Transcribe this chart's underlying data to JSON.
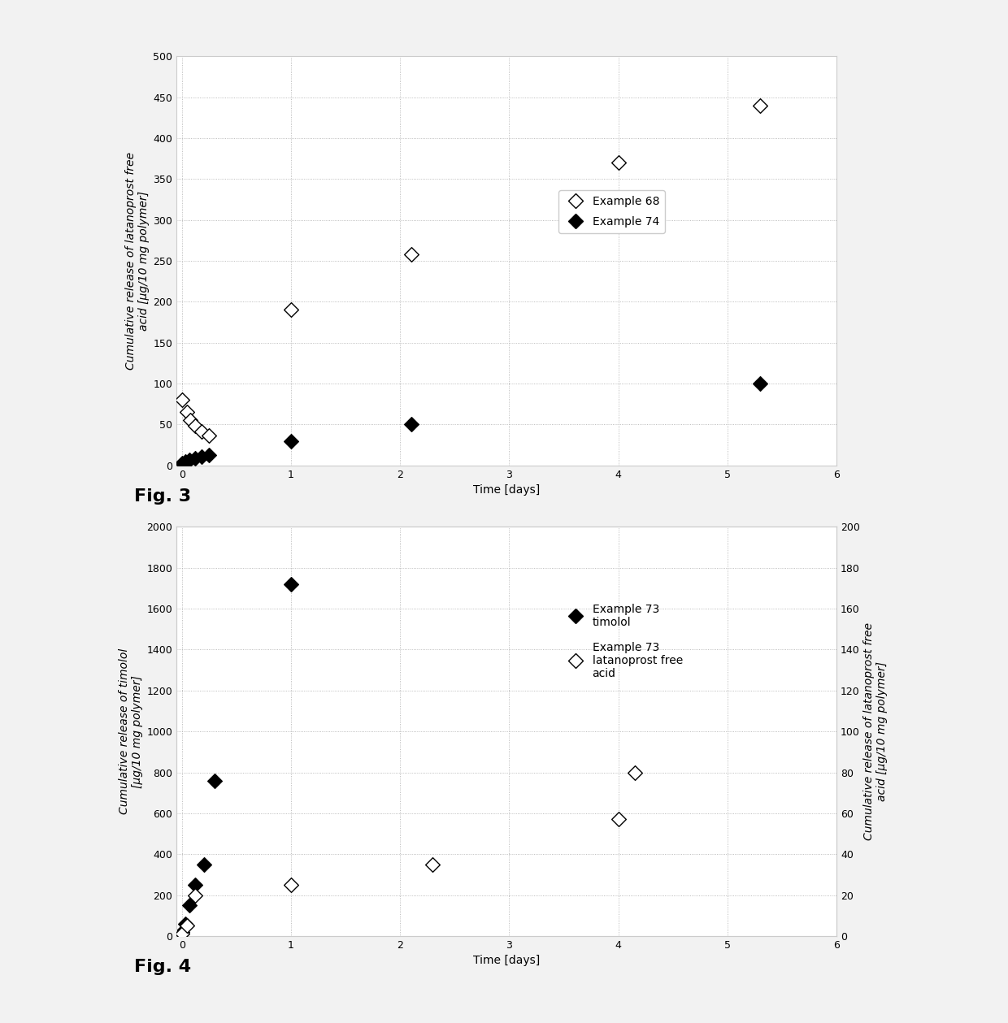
{
  "fig3": {
    "xlabel": "Time [days]",
    "ylabel": "Cumulative release of latanoprost free\nacid [µg/10 mg polymer]",
    "xlim": [
      -0.05,
      6
    ],
    "ylim": [
      0,
      500
    ],
    "yticks": [
      0,
      50,
      100,
      150,
      200,
      250,
      300,
      350,
      400,
      450,
      500
    ],
    "xticks": [
      0,
      1,
      2,
      3,
      4,
      5,
      6
    ],
    "ex68_x": [
      0.0,
      0.05,
      0.08,
      0.12,
      0.18,
      0.25,
      1.0,
      2.1,
      4.0,
      5.3
    ],
    "ex68_y": [
      80,
      65,
      55,
      48,
      42,
      37,
      190,
      258,
      370,
      440
    ],
    "ex74_x": [
      0.0,
      0.03,
      0.07,
      0.12,
      0.18,
      0.25,
      1.0,
      2.1,
      5.3
    ],
    "ex74_y": [
      3,
      5,
      7,
      9,
      11,
      13,
      30,
      50,
      100
    ],
    "legend_ex68": "Example 68",
    "legend_ex74": "Example 74"
  },
  "fig4": {
    "xlabel": "Time [days]",
    "ylabel_left": "Cumulative release of timolol\n[µg/10 mg polymer]",
    "ylabel_right": "Cumulative release of latanoprost free\nacid [µg/10 mg polymer]",
    "xlim": [
      -0.05,
      6
    ],
    "ylim_left": [
      0,
      2000
    ],
    "ylim_right": [
      0,
      200
    ],
    "yticks_left": [
      0,
      200,
      400,
      600,
      800,
      1000,
      1200,
      1400,
      1600,
      1800,
      2000
    ],
    "yticks_right": [
      0,
      20,
      40,
      60,
      80,
      100,
      120,
      140,
      160,
      180,
      200
    ],
    "xticks": [
      0,
      1,
      2,
      3,
      4,
      5,
      6
    ],
    "timolol_x": [
      0.0,
      0.03,
      0.07,
      0.12,
      0.2,
      0.3,
      1.0
    ],
    "timolol_y": [
      20,
      60,
      150,
      250,
      350,
      760,
      1720
    ],
    "latanoprost_x": [
      0.0,
      0.05,
      0.12,
      1.0,
      2.3,
      4.0,
      4.15
    ],
    "latanoprost_y": [
      1,
      5,
      20,
      25,
      35,
      57,
      80
    ],
    "legend_timolol": "Example 73\ntimolol",
    "legend_latanoprost": "Example 73\nlatanoprost free\nacid"
  },
  "fig_bg": "#f2f2f2",
  "plot_bg": "#ffffff",
  "border_color": "#cccccc",
  "grid_color": "#aaaaaa",
  "fig3_label": "Fig. 3",
  "fig4_label": "Fig. 4",
  "marker_size": 9,
  "open_color": "#ffffff",
  "filled_color": "#000000",
  "edge_color": "#000000",
  "label_fontsize": 16,
  "axis_fontsize": 10,
  "tick_fontsize": 9,
  "legend_fontsize": 10
}
